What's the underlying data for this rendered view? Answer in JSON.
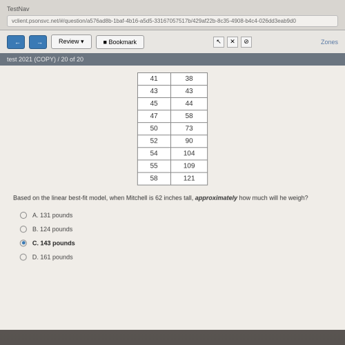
{
  "browser": {
    "tab": "TestNav",
    "url": "vclient.psonsvc.net/#/question/a576ad8b-1baf-4b16-a5d5-33167057517b/429af22b-8c35-4908-b4c4-026dd3eab9d0"
  },
  "toolbar": {
    "back": "←",
    "fwd": "→",
    "review": "Review ▾",
    "bookmark": "■ Bookmark",
    "pointer": "↖",
    "close": "✕",
    "help": "⊘",
    "zones": "Zones"
  },
  "meta": "test 2021 (COPY)  /  20 of 20",
  "data_table": {
    "rows": [
      [
        41,
        38
      ],
      [
        43,
        43
      ],
      [
        45,
        44
      ],
      [
        47,
        58
      ],
      [
        50,
        73
      ],
      [
        52,
        90
      ],
      [
        54,
        104
      ],
      [
        55,
        109
      ],
      [
        58,
        121
      ]
    ]
  },
  "question_pre": "Based on the linear best-fit model, when Mitchell is 62 inches tall, ",
  "question_em": "approximately",
  "question_post": " how much will he weigh?",
  "answers": [
    {
      "key": "A",
      "text": "131 pounds",
      "selected": false
    },
    {
      "key": "B",
      "text": "124 pounds",
      "selected": false
    },
    {
      "key": "C",
      "text": "143 pounds",
      "selected": true
    },
    {
      "key": "D",
      "text": "161 pounds",
      "selected": false
    }
  ]
}
